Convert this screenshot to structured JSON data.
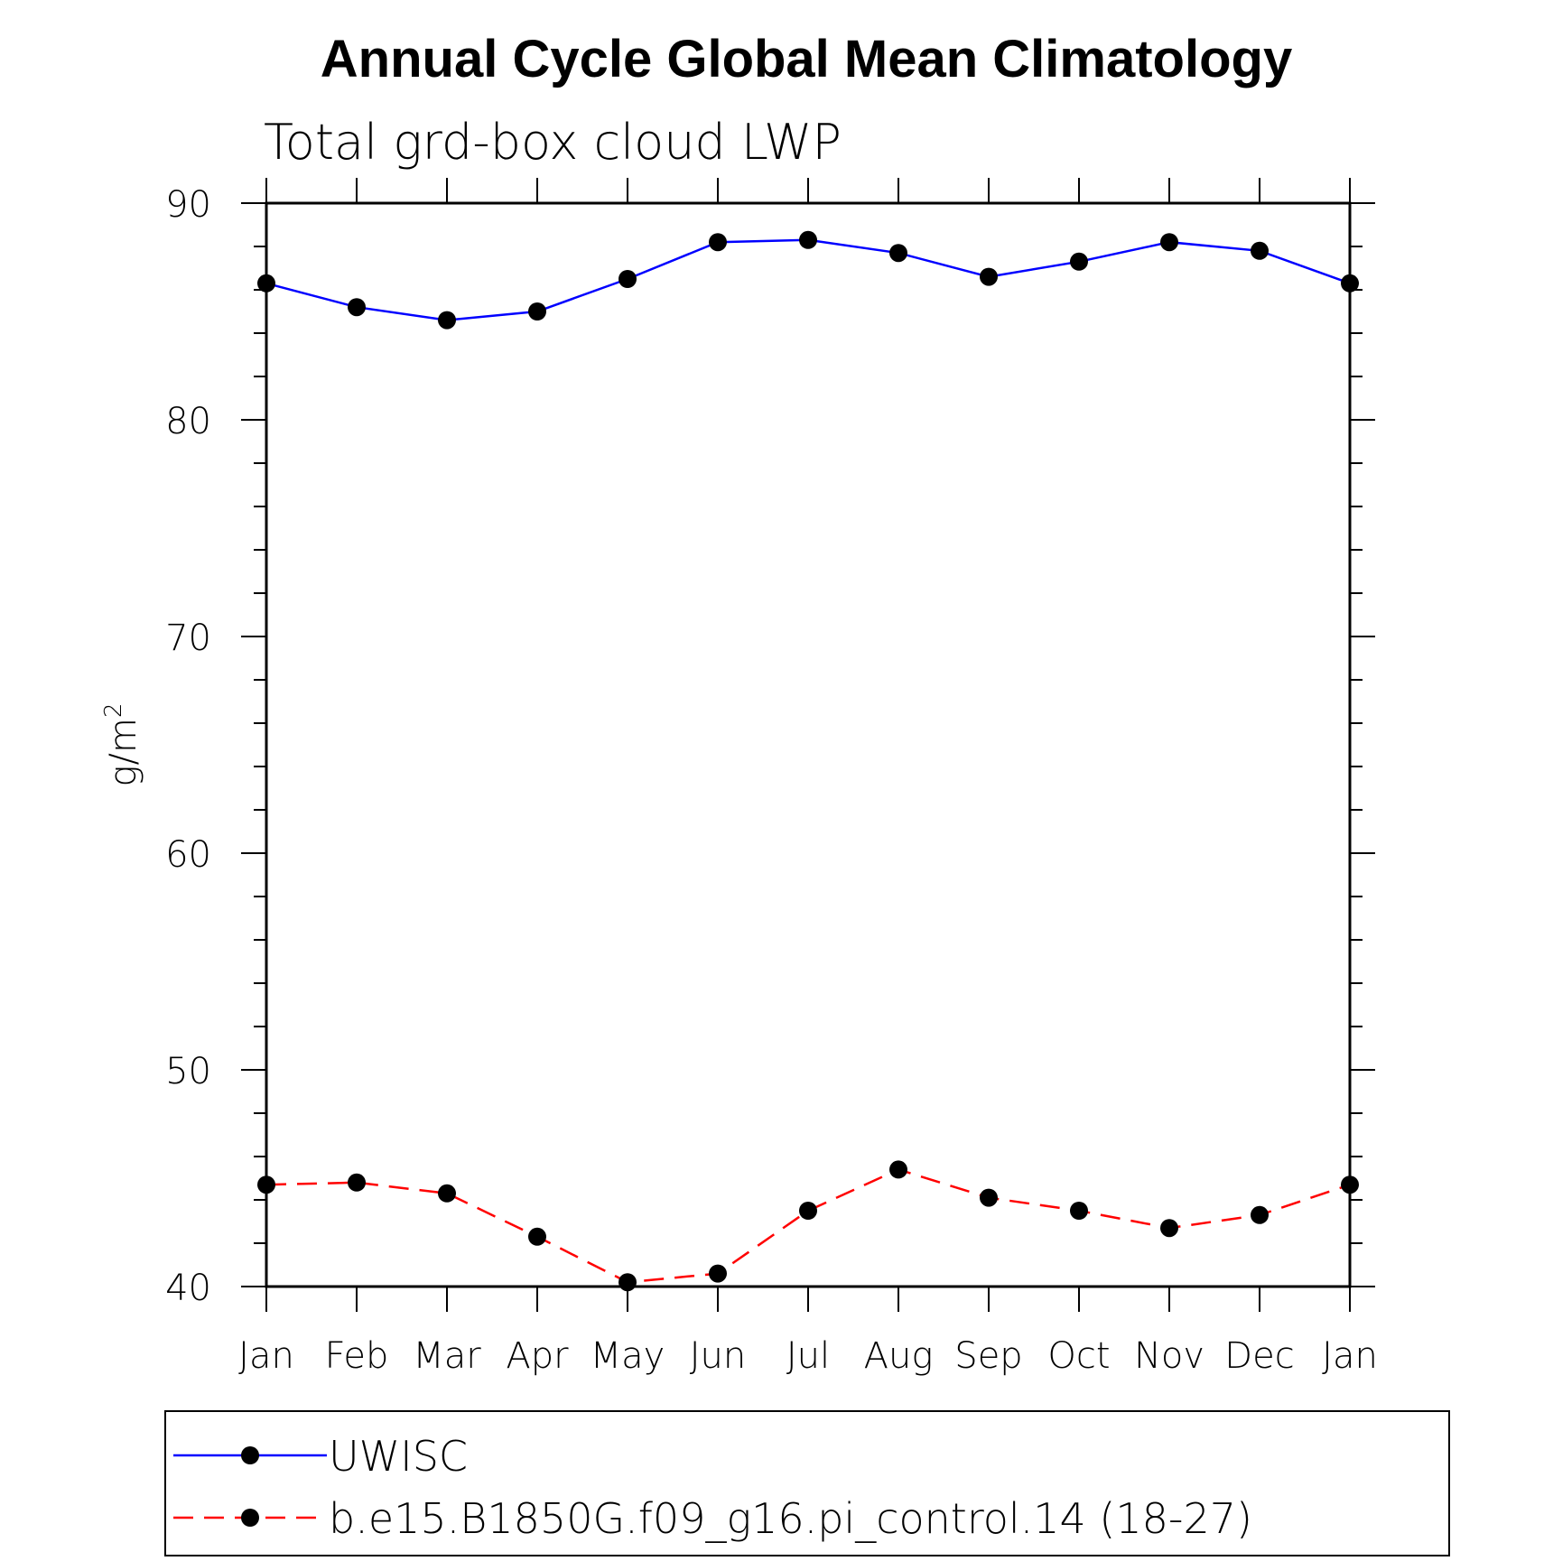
{
  "chart_data": {
    "type": "line",
    "title": "Annual Cycle Global Mean Climatology",
    "subtitle": "Total grd-box cloud LWP",
    "ylabel": "g/m",
    "ylabel_superscript": "2",
    "categories": [
      "Jan",
      "Feb",
      "Mar",
      "Apr",
      "May",
      "Jun",
      "Jul",
      "Aug",
      "Sep",
      "Oct",
      "Nov",
      "Dec",
      "Jan"
    ],
    "ylim": [
      40,
      90
    ],
    "yticks": [
      "40",
      "50",
      "60",
      "70",
      "80",
      "90"
    ],
    "series": [
      {
        "name": "UWISC",
        "color": "#0000ff",
        "dash": "solid",
        "values": [
          86.3,
          85.2,
          84.6,
          85.0,
          86.5,
          88.2,
          88.3,
          87.7,
          86.6,
          87.3,
          88.2,
          87.8,
          86.3
        ]
      },
      {
        "name": "b.e15.B1850G.f09_g16.pi_control.14 (18-27)",
        "color": "#ff0000",
        "dash": "dashed",
        "values": [
          44.7,
          44.8,
          44.3,
          42.3,
          40.2,
          40.6,
          43.5,
          45.4,
          44.1,
          43.5,
          42.7,
          43.3,
          44.7
        ]
      }
    ],
    "legend_position": "bottom"
  }
}
